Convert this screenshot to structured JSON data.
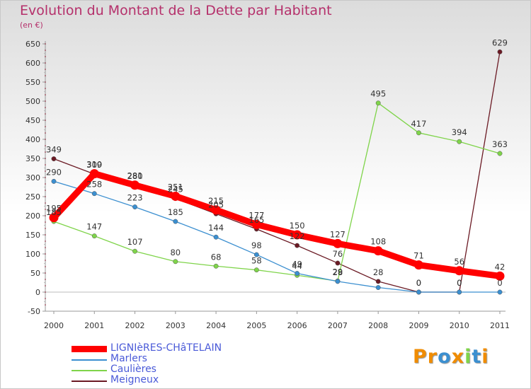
{
  "chart_data": {
    "type": "line",
    "title": "Evolution du Montant de la Dette par Habitant",
    "unit": "(en €)",
    "x": [
      "2000",
      "2001",
      "2002",
      "2003",
      "2004",
      "2005",
      "2006",
      "2007",
      "2008",
      "2009",
      "2010",
      "2011"
    ],
    "ylim": [
      -50,
      650
    ],
    "yticks": [
      -50,
      0,
      50,
      100,
      150,
      200,
      250,
      300,
      350,
      400,
      450,
      500,
      550,
      600,
      650
    ],
    "ytick_labels": [
      "-50",
      "0",
      "50",
      "100",
      "150",
      "200",
      "250",
      "300",
      "350",
      "400",
      "450",
      "500",
      "550",
      "600",
      "650"
    ],
    "grid": false,
    "legend_position": "bottom-left",
    "series": [
      {
        "name": "Meigneux",
        "color": "#6b1a24",
        "values": [
          349,
          309,
          281,
          245,
          205,
          165,
          122,
          76,
          28,
          0,
          0,
          629
        ],
        "labels": [
          "349",
          "309",
          "281",
          "245",
          "205",
          "165",
          "122",
          "76",
          "28",
          "0",
          "0",
          "629"
        ]
      },
      {
        "name": "Caulières",
        "color": "#7fd44a",
        "values": [
          185,
          147,
          107,
          80,
          68,
          58,
          44,
          29,
          495,
          417,
          394,
          363
        ],
        "labels": [
          "185",
          "147",
          "107",
          "80",
          "68",
          "58",
          "44",
          "29",
          "495",
          "417",
          "394",
          "363"
        ]
      },
      {
        "name": "Marlers",
        "color": "#3b8fd0",
        "values": [
          290,
          258,
          223,
          185,
          144,
          98,
          49,
          28,
          12,
          0,
          0,
          0
        ],
        "labels": [
          "290",
          "258",
          "223",
          "185",
          "144",
          "98",
          "49",
          "28",
          "",
          "0",
          "0",
          "0"
        ]
      },
      {
        "name": "LIGNIèRES-CHâTELAIN",
        "color": "#ff0000",
        "values": [
          195,
          310,
          280,
          251,
          215,
          177,
          150,
          127,
          108,
          71,
          56,
          42
        ],
        "labels": [
          "195",
          "310",
          "280",
          "251",
          "215",
          "177",
          "150",
          "127",
          "108",
          "71",
          "56",
          "42"
        ]
      }
    ]
  },
  "legend": {
    "items": [
      {
        "name": "LIGNIèRES-CHâTELAIN",
        "color": "#ff0000"
      },
      {
        "name": "Marlers",
        "color": "#3b8fd0"
      },
      {
        "name": "Caulières",
        "color": "#7fd44a"
      },
      {
        "name": "Meigneux",
        "color": "#6b1a24"
      }
    ]
  },
  "logo": {
    "letters": [
      "P",
      "r",
      "o",
      "x",
      "i",
      "t",
      "i"
    ],
    "colors": [
      "#f08c00",
      "#f08c00",
      "#3b8fd0",
      "#f08c00",
      "#7fd44a",
      "#3b8fd0",
      "#f08c00"
    ]
  }
}
